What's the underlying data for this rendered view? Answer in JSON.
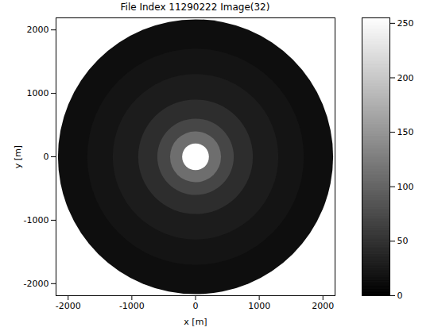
{
  "chart_data": {
    "type": "heatmap",
    "title": "File Index 11290222 Image(32)",
    "x_label": "x [m]",
    "y_label": "y [m]",
    "xlim": [
      -2190,
      2190
    ],
    "ylim": [
      -2190,
      2190
    ],
    "xticks": [
      -2000,
      -1000,
      0,
      1000,
      2000
    ],
    "yticks": [
      -2000,
      -1000,
      0,
      1000,
      2000
    ],
    "rings": [
      {
        "radius": 2160,
        "value": 14
      },
      {
        "radius": 1700,
        "value": 20
      },
      {
        "radius": 1300,
        "value": 28
      },
      {
        "radius": 900,
        "value": 45
      },
      {
        "radius": 600,
        "value": 70
      },
      {
        "radius": 400,
        "value": 110
      },
      {
        "radius": 210,
        "value": 255
      }
    ],
    "colorbar": {
      "range": [
        0,
        255
      ],
      "ticks": [
        0,
        50,
        100,
        150,
        200,
        250
      ]
    }
  }
}
